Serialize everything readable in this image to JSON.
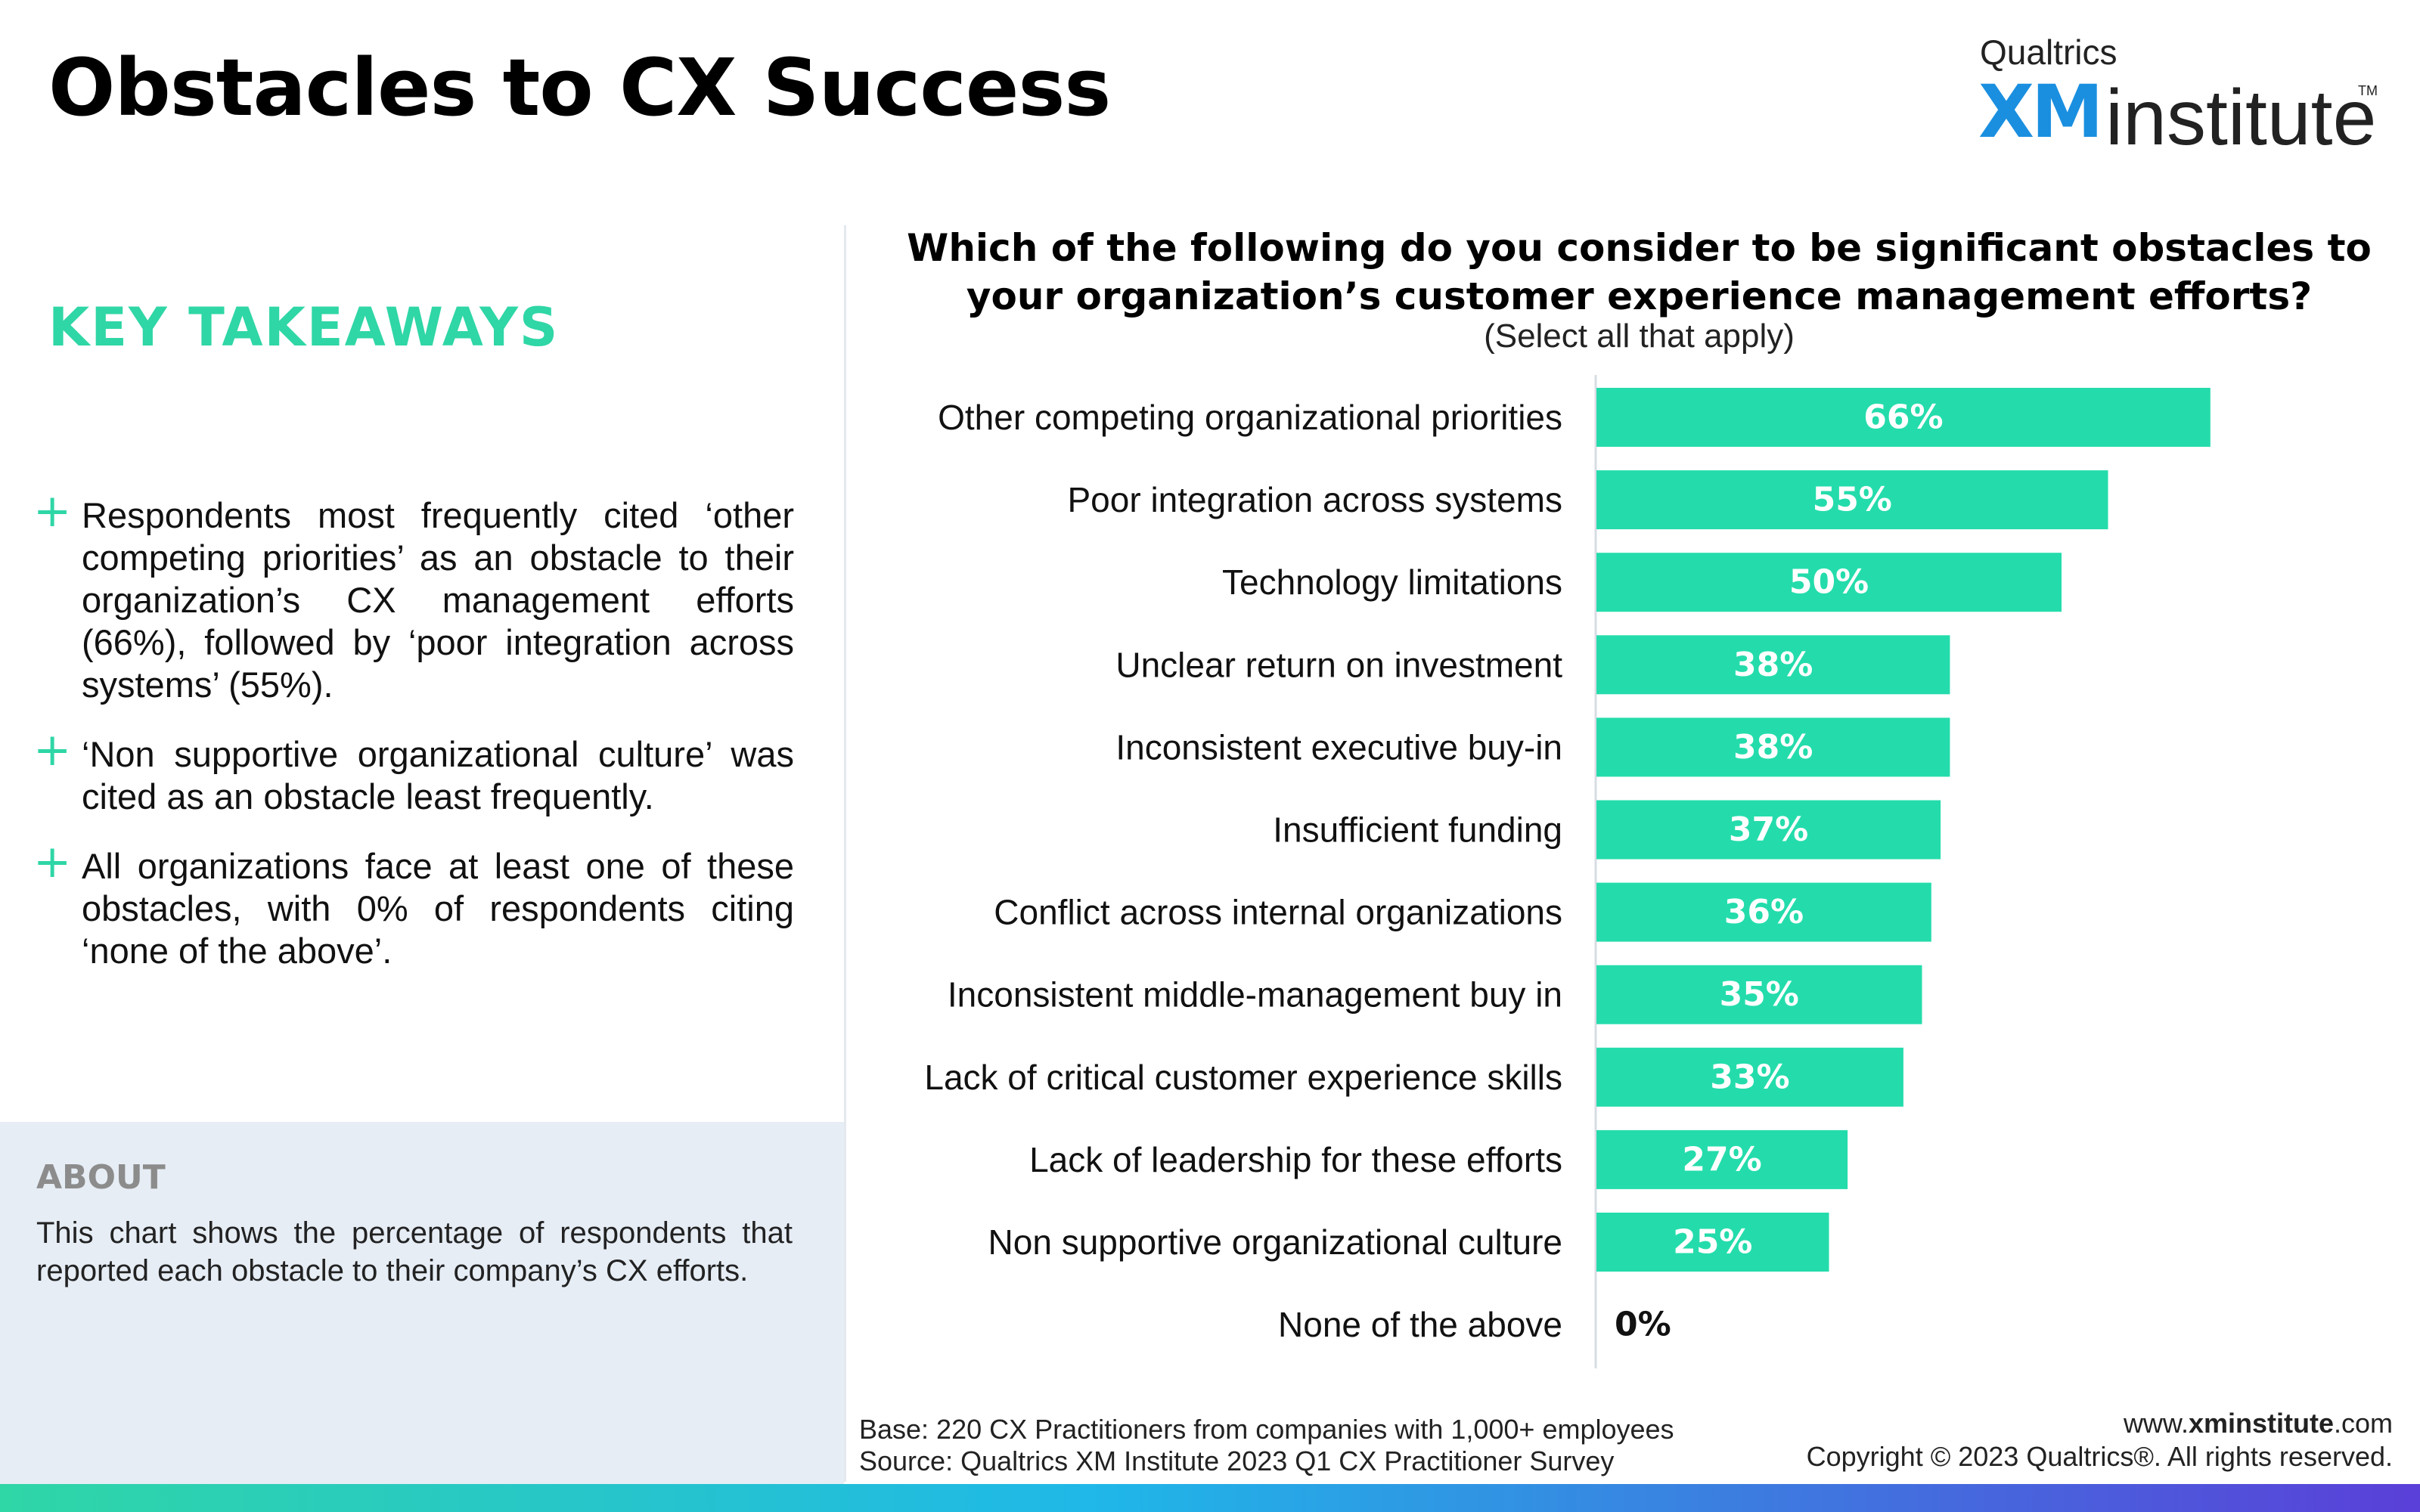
{
  "header": {
    "title": "Obstacles to CX Success",
    "logo": {
      "top_line": "Qualtrics",
      "xm": "XM",
      "institute": "institute",
      "tm": "TM"
    }
  },
  "takeaways": {
    "heading": "KEY TAKEAWAYS",
    "bullet_symbol": "+",
    "items": [
      "Respondents most frequently cited ‘other competing priorities’ as an obstacle to their organization’s CX management efforts (66%), followed by ‘poor integration across systems’ (55%).",
      "‘Non supportive organizational culture’ was cited as an obstacle least frequently.",
      "All organizations face at least one of these obstacles, with 0% of respondents citing ‘none of the above’."
    ]
  },
  "about": {
    "heading": "ABOUT",
    "text": "This chart shows the percentage of respondents that reported each obstacle to their company’s CX efforts."
  },
  "chart_data": {
    "type": "bar",
    "orientation": "horizontal",
    "title": "Which of the following do you consider to be significant obstacles to your organization’s customer experience management efforts?",
    "subtitle": "(Select all that apply)",
    "categories": [
      "Other competing organizational priorities",
      "Poor integration across systems",
      "Technology limitations",
      "Unclear return on investment",
      "Inconsistent executive buy-in",
      "Insufficient funding",
      "Conflict across internal organizations",
      "Inconsistent middle-management buy in",
      "Lack of critical customer experience skills",
      "Lack of leadership for these efforts",
      "Non supportive organizational culture",
      "None of the above"
    ],
    "values": [
      66,
      55,
      50,
      38,
      38,
      37,
      36,
      35,
      33,
      27,
      25,
      0
    ],
    "value_labels": [
      "66%",
      "55%",
      "50%",
      "38%",
      "38%",
      "37%",
      "36%",
      "35%",
      "33%",
      "27%",
      "25%",
      "0%"
    ],
    "unit": "%",
    "xlim": [
      0,
      90
    ],
    "grid": false,
    "bar_color": "#24dcab",
    "axis_color": "#d7dce3"
  },
  "footer": {
    "base": "Base: 220 CX Practitioners from companies with 1,000+ employees",
    "source": "Source: Qualtrics XM Institute 2023 Q1 CX Practitioner Survey",
    "url_prefix": "www.",
    "url_bold": "xminstitute",
    "url_suffix": ".com",
    "copyright": "Copyright © 2023 Qualtrics®. All rights reserved."
  },
  "colors": {
    "accent": "#2fd6a6",
    "about_background": "#e6edf5",
    "gradient": [
      "#2fd6a6",
      "#1fb8e8",
      "#5a3fd8"
    ]
  }
}
